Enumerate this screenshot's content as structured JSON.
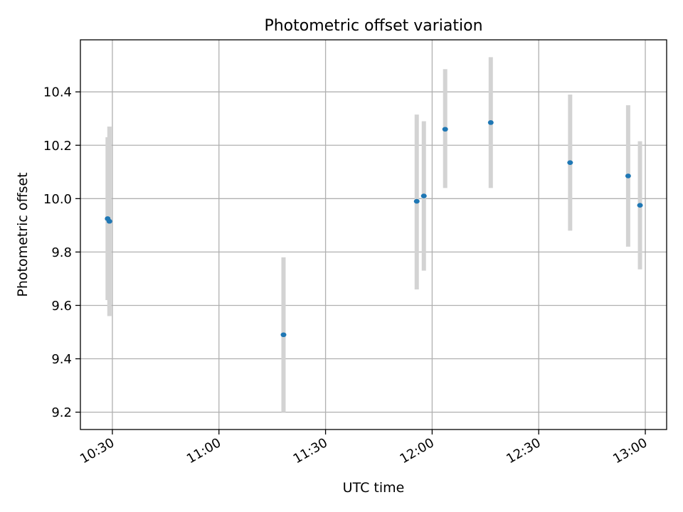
{
  "chart_data": {
    "type": "scatter",
    "title": "Photometric offset variation",
    "xlabel": "UTC time",
    "ylabel": "Photometric offset",
    "grid": true,
    "x_axis_type": "time",
    "xlim": [
      "10:21",
      "13:06"
    ],
    "ylim": [
      9.135,
      10.595
    ],
    "x_ticks": [
      "10:30",
      "11:00",
      "11:30",
      "12:00",
      "12:30",
      "13:00"
    ],
    "y_ticks": [
      "9.2",
      "9.4",
      "9.6",
      "9.8",
      "10.0",
      "10.2",
      "10.4"
    ],
    "colors": {
      "point": "#1f77b4",
      "errorbar": "#d3d3d3",
      "grid": "#b0b0b0",
      "frame": "#000000"
    },
    "points": [
      {
        "x": "10:28:40",
        "y": 9.925,
        "err_low": 9.62,
        "err_high": 10.23
      },
      {
        "x": "10:29:10",
        "y": 9.915,
        "err_low": 9.56,
        "err_high": 10.27
      },
      {
        "x": "11:18:10",
        "y": 9.49,
        "err_low": 9.2,
        "err_high": 9.78
      },
      {
        "x": "11:55:40",
        "y": 9.99,
        "err_low": 9.66,
        "err_high": 10.315
      },
      {
        "x": "11:57:40",
        "y": 10.01,
        "err_low": 9.73,
        "err_high": 10.29
      },
      {
        "x": "12:03:40",
        "y": 10.26,
        "err_low": 10.04,
        "err_high": 10.485
      },
      {
        "x": "12:16:30",
        "y": 10.285,
        "err_low": 10.04,
        "err_high": 10.53
      },
      {
        "x": "12:38:50",
        "y": 10.135,
        "err_low": 9.88,
        "err_high": 10.39
      },
      {
        "x": "12:55:10",
        "y": 10.085,
        "err_low": 9.82,
        "err_high": 10.35
      },
      {
        "x": "12:58:30",
        "y": 9.975,
        "err_low": 9.735,
        "err_high": 10.215
      }
    ]
  }
}
